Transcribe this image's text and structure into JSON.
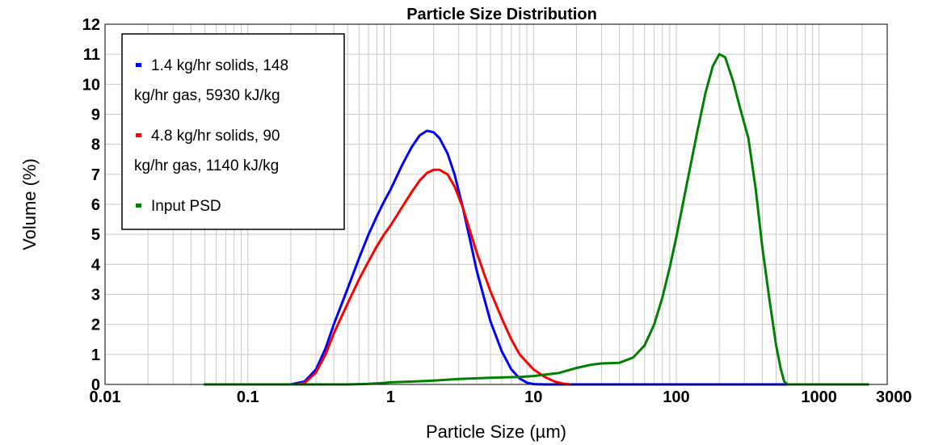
{
  "chart_data": {
    "type": "line",
    "title": "Particle Size Distribution",
    "xlabel": "Particle Size (µm)",
    "ylabel": "Volume (%)",
    "xscale": "log",
    "xlim": [
      0.01,
      3000
    ],
    "ylim": [
      0,
      12
    ],
    "xticks": [
      {
        "value": 0.01,
        "label": "0.01"
      },
      {
        "value": 0.1,
        "label": "0.1"
      },
      {
        "value": 1,
        "label": "1"
      },
      {
        "value": 10,
        "label": "10"
      },
      {
        "value": 100,
        "label": "100"
      },
      {
        "value": 1000,
        "label": "1000"
      },
      {
        "value": 3000,
        "label": "3000"
      }
    ],
    "yticks": [
      0,
      1,
      2,
      3,
      4,
      5,
      6,
      7,
      8,
      9,
      10,
      11,
      12
    ],
    "grid": true,
    "legend_position": "top-left",
    "series": [
      {
        "name": "1.4 kg/hr solids, 148 kg/hr gas, 5930 kJ/kg",
        "legend_lines": [
          "1.4 kg/hr solids, 148",
          "kg/hr gas, 5930 kJ/kg"
        ],
        "color": "#0000ff",
        "points": [
          [
            0.05,
            0
          ],
          [
            0.2,
            0
          ],
          [
            0.25,
            0.1
          ],
          [
            0.3,
            0.5
          ],
          [
            0.35,
            1.2
          ],
          [
            0.4,
            2.0
          ],
          [
            0.5,
            3.2
          ],
          [
            0.6,
            4.2
          ],
          [
            0.7,
            5.0
          ],
          [
            0.8,
            5.6
          ],
          [
            0.9,
            6.1
          ],
          [
            1.0,
            6.5
          ],
          [
            1.2,
            7.3
          ],
          [
            1.4,
            7.9
          ],
          [
            1.6,
            8.3
          ],
          [
            1.8,
            8.45
          ],
          [
            2.0,
            8.4
          ],
          [
            2.2,
            8.2
          ],
          [
            2.5,
            7.7
          ],
          [
            2.8,
            7.0
          ],
          [
            3.2,
            5.9
          ],
          [
            3.6,
            4.8
          ],
          [
            4.0,
            3.8
          ],
          [
            4.5,
            2.9
          ],
          [
            5.0,
            2.1
          ],
          [
            6.0,
            1.1
          ],
          [
            7.0,
            0.5
          ],
          [
            8.0,
            0.2
          ],
          [
            9.0,
            0.06
          ],
          [
            10,
            0.01
          ],
          [
            12,
            0
          ],
          [
            2200,
            0
          ]
        ]
      },
      {
        "name": "4.8 kg/hr solids, 90 kg/hr gas, 1140 kJ/kg",
        "legend_lines": [
          "4.8 kg/hr solids, 90",
          "kg/hr gas, 1140 kJ/kg"
        ],
        "color": "#ff0000",
        "points": [
          [
            0.22,
            0
          ],
          [
            0.25,
            0.05
          ],
          [
            0.3,
            0.4
          ],
          [
            0.35,
            1.0
          ],
          [
            0.4,
            1.7
          ],
          [
            0.5,
            2.7
          ],
          [
            0.6,
            3.5
          ],
          [
            0.7,
            4.1
          ],
          [
            0.8,
            4.6
          ],
          [
            0.9,
            5.0
          ],
          [
            1.0,
            5.3
          ],
          [
            1.2,
            5.9
          ],
          [
            1.4,
            6.4
          ],
          [
            1.6,
            6.8
          ],
          [
            1.8,
            7.05
          ],
          [
            2.0,
            7.15
          ],
          [
            2.2,
            7.15
          ],
          [
            2.5,
            7.0
          ],
          [
            2.8,
            6.6
          ],
          [
            3.2,
            5.9
          ],
          [
            3.6,
            5.1
          ],
          [
            4.0,
            4.4
          ],
          [
            4.5,
            3.7
          ],
          [
            5.0,
            3.1
          ],
          [
            6.0,
            2.2
          ],
          [
            7.0,
            1.5
          ],
          [
            8.0,
            1.0
          ],
          [
            10,
            0.5
          ],
          [
            12,
            0.25
          ],
          [
            14,
            0.1
          ],
          [
            16,
            0.03
          ],
          [
            18,
            0
          ]
        ]
      },
      {
        "name": "Input PSD",
        "legend_lines": [
          "Input PSD"
        ],
        "color": "#008000",
        "points": [
          [
            0.05,
            0
          ],
          [
            0.5,
            0
          ],
          [
            0.7,
            0.02
          ],
          [
            0.9,
            0.05
          ],
          [
            1.0,
            0.07
          ],
          [
            1.5,
            0.1
          ],
          [
            2.0,
            0.13
          ],
          [
            3.0,
            0.18
          ],
          [
            5.0,
            0.22
          ],
          [
            8.0,
            0.25
          ],
          [
            10,
            0.28
          ],
          [
            15,
            0.38
          ],
          [
            20,
            0.55
          ],
          [
            25,
            0.65
          ],
          [
            30,
            0.7
          ],
          [
            40,
            0.72
          ],
          [
            50,
            0.9
          ],
          [
            60,
            1.3
          ],
          [
            70,
            2.0
          ],
          [
            80,
            2.9
          ],
          [
            90,
            3.9
          ],
          [
            100,
            4.9
          ],
          [
            120,
            6.8
          ],
          [
            140,
            8.4
          ],
          [
            160,
            9.7
          ],
          [
            180,
            10.6
          ],
          [
            200,
            11.0
          ],
          [
            220,
            10.9
          ],
          [
            250,
            10.1
          ],
          [
            280,
            9.2
          ],
          [
            320,
            8.2
          ],
          [
            360,
            6.5
          ],
          [
            400,
            4.6
          ],
          [
            450,
            2.8
          ],
          [
            500,
            1.3
          ],
          [
            540,
            0.5
          ],
          [
            570,
            0.1
          ],
          [
            600,
            0
          ],
          [
            2200,
            0
          ]
        ]
      }
    ]
  }
}
